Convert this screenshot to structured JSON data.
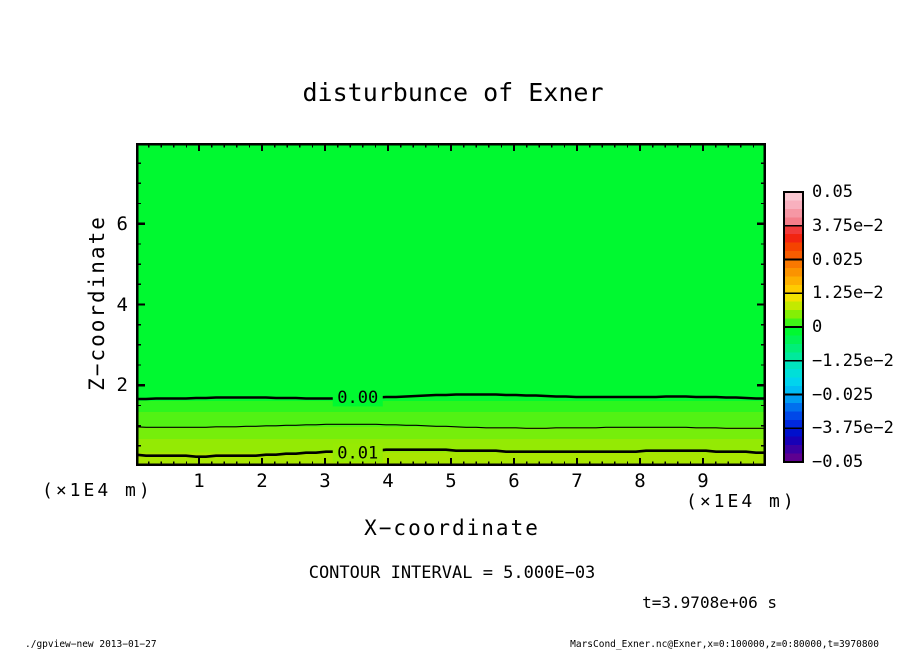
{
  "title": "disturbunce of Exner",
  "axes": {
    "x": {
      "label": "X−coordinate",
      "unit": "(×1E4 m)",
      "range": [
        0,
        10
      ],
      "major_ticks": [
        1,
        2,
        3,
        4,
        5,
        6,
        7,
        8,
        9
      ],
      "minor_step": 0.2
    },
    "z": {
      "label": "Z−coordinate",
      "unit": "(×1E4 m)",
      "range": [
        0,
        8
      ],
      "major_ticks": [
        2,
        4,
        6
      ],
      "minor_step": 0.5
    }
  },
  "colorbar": {
    "tick_labels": [
      "0.05",
      "3.75e−2",
      "0.025",
      "1.25e−2",
      "0",
      "−1.25e−2",
      "−0.025",
      "−3.75e−2",
      "−0.05"
    ],
    "cells": [
      "#FAC8D2",
      "#F8B0BE",
      "#F697A4",
      "#F47E8A",
      "#F13A3A",
      "#F22410",
      "#F54300",
      "#F75C00",
      "#F97800",
      "#FB9300",
      "#FDAF00",
      "#FECB00",
      "#F2E200",
      "#C3E900",
      "#84EF05",
      "#3FF417",
      "#00F930",
      "#00F354",
      "#00EE78",
      "#00E99C",
      "#00E4BE",
      "#00DFD8",
      "#00D4EE",
      "#00BDF4",
      "#009CF2",
      "#0070EE",
      "#0048E8",
      "#0028DE",
      "#0010CC",
      "#1800B6",
      "#3C00A2",
      "#5E0090"
    ]
  },
  "annotations": {
    "contour_interval": "CONTOUR INTERVAL = 5.000E−03",
    "time": "t=3.9708e+06 s"
  },
  "footer": {
    "left": "./gpview−new  2013−01−27",
    "right": "MarsCond_Exner.nc@Exner,x=0:100000,z=0:80000,t=3970800"
  },
  "chart_data": {
    "type": "heatmap",
    "title": "disturbunce of Exner",
    "xlabel": "X−coordinate (×1E4 m)",
    "ylabel": "Z−coordinate (×1E4 m)",
    "xlim": [
      0,
      10
    ],
    "ylim": [
      0,
      8
    ],
    "contour_interval": 0.005,
    "legend_position": "right-colorbar",
    "colorbar_range": [
      -0.05,
      0.05
    ],
    "field_summary": "Exner disturbance is ~0 over nearly the whole domain (uniform green); a thin near-surface layer below z~1.7e4 m increases toward ~0.012 at z=0",
    "bands": [
      {
        "z_top": 8.0,
        "z_bottom": 1.61,
        "value": 0.0,
        "color": "#00F930"
      },
      {
        "z_top": 1.61,
        "z_bottom": 1.34,
        "value": 0.004,
        "color": "#2CF61E"
      },
      {
        "z_top": 1.34,
        "z_bottom": 0.97,
        "value": 0.006,
        "color": "#52F214"
      },
      {
        "z_top": 0.97,
        "z_bottom": 0.67,
        "value": 0.008,
        "color": "#76EE0B"
      },
      {
        "z_top": 0.67,
        "z_bottom": 0.33,
        "value": 0.01,
        "color": "#94EA04"
      },
      {
        "z_top": 0.33,
        "z_bottom": 0.0,
        "value": 0.012,
        "color": "#A8E600"
      }
    ],
    "contours": [
      {
        "value": 0.0,
        "label": "0.00",
        "z": 1.71,
        "thick": true,
        "labeled": true,
        "label_bg": "#00F930"
      },
      {
        "value": 0.005,
        "label": "",
        "z": 0.97,
        "thick": false,
        "labeled": false,
        "label_bg": ""
      },
      {
        "value": 0.01,
        "label": "0.01",
        "z": 0.33,
        "thick": true,
        "labeled": true,
        "label_bg": "#97EA03"
      }
    ],
    "contour_label_x": 3.52
  }
}
